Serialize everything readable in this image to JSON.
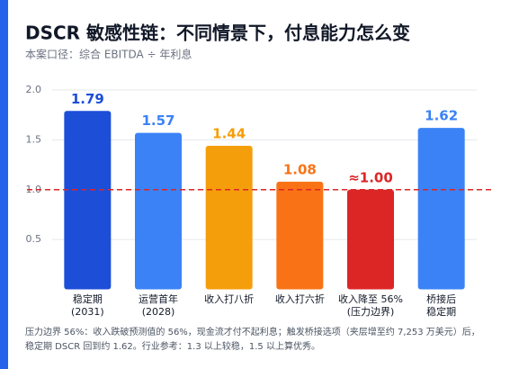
{
  "chart_data": {
    "type": "bar",
    "title": "DSCR 敏感性链：不同情景下，付息能力怎么变",
    "subtitle": "本案口径：综合 EBITDA ÷ 年利息",
    "categories": [
      "稳定期\n(2031)",
      "运营首年\n(2028)",
      "收入打八折",
      "收入打六折",
      "收入降至 56%\n(压力边界)",
      "桥接后\n稳定期"
    ],
    "values": [
      1.79,
      1.57,
      1.44,
      1.08,
      1.0,
      1.62
    ],
    "value_labels": [
      "1.79",
      "1.57",
      "1.44",
      "1.08",
      "≈1.00",
      "1.62"
    ],
    "colors": [
      "#1d4ed8",
      "#3b82f6",
      "#f59e0b",
      "#f97316",
      "#dc2626",
      "#3b82f6"
    ],
    "threshold": 1,
    "threshold_color": "#dc2626",
    "ylim": [
      0,
      2
    ],
    "yticks": [
      0.5,
      {
        "value": 1,
        "label": "1.0"
      },
      1.5,
      {
        "value": 2,
        "label": "2.0"
      }
    ],
    "grid": true,
    "notes": [
      "压力边界 56%：收入跌破预测值的 56%，现金流才付不起利息；触发桥接选项（夹层增至约 7,253 万美元）后，",
      "稳定期 DSCR 回到约 1.62。行业参考：1.3 以上较稳，1.5 以上算优秀。"
    ]
  }
}
